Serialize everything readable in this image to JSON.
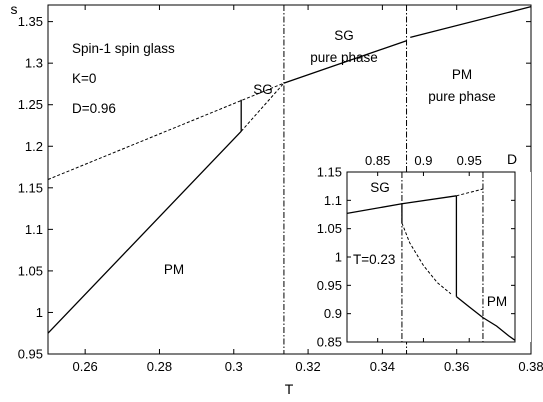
{
  "chart_data": [
    {
      "type": "line",
      "x_axis": {
        "label": "T",
        "range": [
          0.25,
          0.38
        ],
        "ticks": [
          0.26,
          0.28,
          0.3,
          0.32,
          0.34,
          0.36,
          0.38
        ],
        "tick_labels": [
          "0.26",
          "0.28",
          "0.3",
          "0.32",
          "0.34",
          "0.36",
          "0.38"
        ]
      },
      "y_axis": {
        "label": "s",
        "range": [
          0.95,
          1.37
        ],
        "ticks": [
          0.95,
          1.0,
          1.05,
          1.1,
          1.15,
          1.2,
          1.25,
          1.3,
          1.35
        ],
        "tick_labels": [
          "0.95",
          "1",
          "1.05",
          "1.1",
          "1.15",
          "1.2",
          "1.25",
          "1.3",
          "1.35"
        ]
      },
      "grid": false,
      "annotations": {
        "title_lines": [
          "Spin-1 spin glass",
          "K=0",
          "D=0.96"
        ],
        "sg_label": "SG",
        "sg_pure_lines": [
          "SG",
          "pure phase"
        ],
        "pm_pure_lines": [
          "PM",
          "pure phase"
        ],
        "pm_label": "PM"
      },
      "series": [
        {
          "style": "dashed",
          "points": [
            [
              0.25,
              1.16
            ],
            [
              0.3135,
              1.276
            ]
          ]
        },
        {
          "style": "solid",
          "points": [
            [
              0.25,
              0.975
            ],
            [
              0.302,
              1.218
            ]
          ]
        },
        {
          "style": "solid",
          "points": [
            [
              0.302,
              1.218
            ],
            [
              0.302,
              1.256
            ]
          ]
        },
        {
          "style": "dashed",
          "points": [
            [
              0.302,
              1.218
            ],
            [
              0.3135,
              1.276
            ]
          ]
        },
        {
          "style": "solid",
          "points": [
            [
              0.3135,
              1.276
            ],
            [
              0.3465,
              1.327
            ]
          ]
        },
        {
          "style": "solid",
          "points": [
            [
              0.3475,
              1.331
            ],
            [
              0.38,
              1.368
            ]
          ]
        }
      ],
      "vertical_lines": [
        {
          "style": "dash-dot",
          "x": 0.3135
        },
        {
          "style": "dash-dot",
          "x": 0.3465
        }
      ]
    },
    {
      "type": "line",
      "x_axis": {
        "label": "D",
        "range": [
          0.8165,
          1.0
        ],
        "ticks": [
          0.85,
          0.9,
          0.95
        ],
        "tick_labels": [
          "0.85",
          "0.9",
          "0.95"
        ]
      },
      "y_axis": {
        "range": [
          0.85,
          1.15
        ],
        "ticks": [
          0.85,
          0.9,
          0.95,
          1.0,
          1.05,
          1.1,
          1.15
        ],
        "tick_labels": [
          "0.85",
          "0.9",
          "0.95",
          "1",
          "1.05",
          "1.1",
          "1.15"
        ]
      },
      "grid": false,
      "annotations": {
        "sg_label": "SG",
        "t_label": "T=0.23",
        "pm_label": "PM"
      },
      "series": [
        {
          "style": "solid",
          "points": [
            [
              0.8165,
              1.077
            ],
            [
              0.8765,
              1.094
            ],
            [
              0.936,
              1.108
            ]
          ]
        },
        {
          "style": "dashed",
          "points": [
            [
              0.936,
              1.108
            ],
            [
              0.965,
              1.12
            ]
          ]
        },
        {
          "style": "solid",
          "points": [
            [
              0.936,
              0.93
            ],
            [
              0.936,
              1.108
            ]
          ]
        },
        {
          "style": "dashed",
          "points": [
            [
              0.8765,
              1.06
            ],
            [
              0.885,
              1.025
            ],
            [
              0.9,
              0.985
            ],
            [
              0.915,
              0.955
            ],
            [
              0.93,
              0.935
            ]
          ]
        },
        {
          "style": "solid",
          "points": [
            [
              0.936,
              0.93
            ],
            [
              0.95,
              0.912
            ],
            [
              0.965,
              0.893
            ],
            [
              0.98,
              0.878
            ],
            [
              0.993,
              0.861
            ],
            [
              1.0,
              0.853
            ]
          ]
        },
        {
          "style": "solid",
          "points": [
            [
              0.8765,
              1.094
            ],
            [
              0.8765,
              1.06
            ]
          ]
        }
      ],
      "vertical_lines": [
        {
          "style": "dash-dot",
          "x": 0.8765
        },
        {
          "style": "dash-dot",
          "x": 0.965
        }
      ]
    }
  ]
}
